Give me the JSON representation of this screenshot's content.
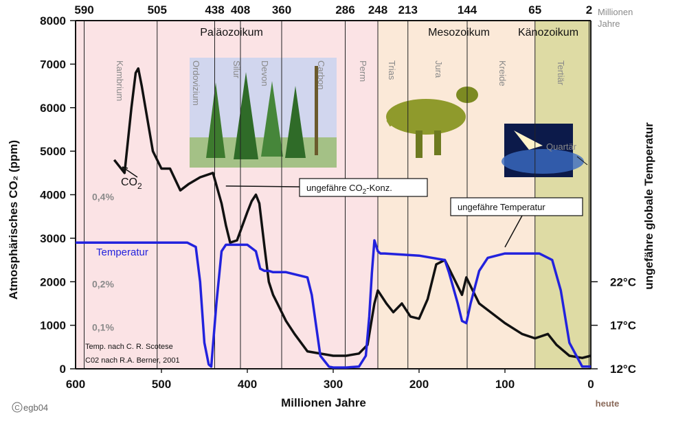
{
  "chart_data": {
    "type": "line",
    "x_unit": "Millionen Jahre",
    "xlabel": "Millionen Jahre",
    "ylabel": "Atmosphärisches CO₂ (ppm)",
    "ylabel2": "ungefähre globale Temperatur",
    "xlim": [
      600,
      0
    ],
    "ylim": [
      0,
      8000
    ],
    "x_ticks": [
      "600",
      "500",
      "400",
      "300",
      "200",
      "100",
      "0"
    ],
    "y_ticks": [
      "0",
      "1000",
      "2000",
      "3000",
      "4000",
      "5000",
      "6000",
      "7000",
      "8000"
    ],
    "y2_ticks": [
      "12°C",
      "17°C",
      "22°C"
    ],
    "y2_tick_values": [
      0,
      1000,
      2000
    ],
    "top_ticks": [
      "590",
      "505",
      "438",
      "408",
      "360",
      "286",
      "248",
      "213",
      "144",
      "65",
      "2"
    ],
    "top_tick_values": [
      590,
      505,
      438,
      408,
      360,
      286,
      248,
      213,
      144,
      65,
      2
    ],
    "top_axis_label": "Millionen Jahre",
    "x_end_label": "heute",
    "percent_labels": [
      {
        "text": "0,4%",
        "y": 4000
      },
      {
        "text": "0,2%",
        "y": 2000
      },
      {
        "text": "0,1%",
        "y": 1000
      }
    ],
    "eras": [
      {
        "name": "Paläozoikum",
        "from": 590,
        "to": 248
      },
      {
        "name": "Mesozoikum",
        "from": 248,
        "to": 65
      },
      {
        "name": "Känozoikum",
        "from": 65,
        "to": 0
      }
    ],
    "periods": [
      "Kambrium",
      "Ordovizium",
      "Silur",
      "Devon",
      "Carbon",
      "Perm",
      "Trias",
      "Jura",
      "Kreide",
      "Tertiär"
    ],
    "quartaer_label": "Quartär",
    "era_colors": [
      "#fbe3e5",
      "#fbe9d8",
      "#dedba4"
    ],
    "series": [
      {
        "name": "CO2",
        "color": "#111111",
        "x": [
          555,
          543,
          535,
          530,
          527,
          523,
          510,
          500,
          490,
          478,
          468,
          455,
          440,
          430,
          425,
          420,
          412,
          400,
          395,
          390,
          386,
          380,
          375,
          370,
          365,
          355,
          345,
          330,
          300,
          285,
          270,
          260,
          252,
          248,
          238,
          230,
          220,
          210,
          200,
          190,
          180,
          170,
          160,
          150,
          145,
          140,
          130,
          100,
          80,
          65,
          50,
          40,
          25,
          10,
          0
        ],
        "y": [
          4800,
          4500,
          6000,
          6800,
          6900,
          6500,
          5000,
          4600,
          4600,
          4100,
          4250,
          4400,
          4500,
          3800,
          3300,
          2900,
          2950,
          3600,
          3850,
          4000,
          3800,
          2800,
          2000,
          1700,
          1500,
          1100,
          800,
          400,
          300,
          300,
          350,
          550,
          1500,
          1800,
          1500,
          1300,
          1500,
          1200,
          1150,
          1600,
          2400,
          2500,
          2100,
          1700,
          2100,
          1900,
          1500,
          1050,
          800,
          700,
          800,
          550,
          300,
          250,
          300
        ]
      },
      {
        "name": "Temperatur",
        "color": "#2222dd",
        "x": [
          600,
          470,
          460,
          455,
          450,
          445,
          442,
          436,
          430,
          425,
          400,
          390,
          385,
          380,
          375,
          370,
          365,
          355,
          330,
          325,
          315,
          305,
          300,
          285,
          270,
          262,
          258,
          255,
          252,
          248,
          245,
          240,
          200,
          170,
          165,
          155,
          150,
          145,
          140,
          130,
          120,
          100,
          60,
          45,
          35,
          25,
          10,
          0
        ],
        "y": [
          2900,
          2900,
          2800,
          2000,
          600,
          100,
          50,
          1500,
          2700,
          2850,
          2850,
          2700,
          2300,
          2250,
          2250,
          2220,
          2220,
          2220,
          2100,
          1700,
          300,
          50,
          30,
          30,
          50,
          300,
          1200,
          2200,
          2950,
          2700,
          2650,
          2650,
          2600,
          2500,
          2200,
          1500,
          1100,
          1050,
          1500,
          2250,
          2550,
          2650,
          2650,
          2500,
          1800,
          600,
          50,
          50
        ]
      }
    ],
    "series_labels": [
      {
        "text": "CO2",
        "sub": "2",
        "color": "#111111"
      },
      {
        "text": "Temperatur",
        "color": "#2222dd"
      }
    ],
    "annotations": [
      {
        "text": "ungefähre CO",
        "sub": "2",
        "rest": "-Konz.",
        "point_x": 425,
        "point_y": 4200
      },
      {
        "text": "ungefähre Temperatur",
        "point_x": 100,
        "point_y": 2700
      }
    ],
    "credits": [
      "Temp. nach C. R. Scotese",
      "C02 nach R.A. Berner, 2001"
    ],
    "copyright": "egb04",
    "grid": "vertical lines at period boundaries"
  }
}
